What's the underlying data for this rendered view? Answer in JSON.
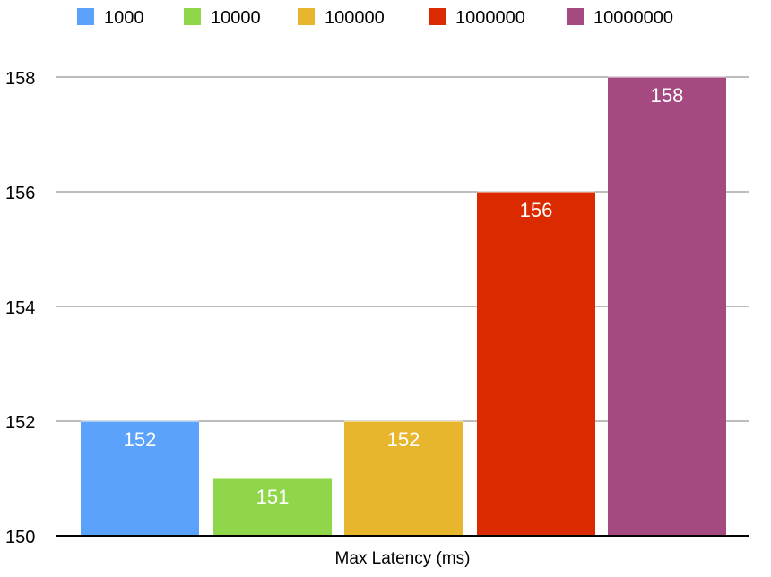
{
  "chart_data": {
    "type": "bar",
    "title": "",
    "xlabel": "Max Latency (ms)",
    "ylabel": "",
    "categories": [
      "Max Latency (ms)"
    ],
    "series": [
      {
        "name": "1000",
        "values": [
          152
        ],
        "color": "#5aa2fb"
      },
      {
        "name": "10000",
        "values": [
          151
        ],
        "color": "#8fd64b"
      },
      {
        "name": "100000",
        "values": [
          152
        ],
        "color": "#e8b62d"
      },
      {
        "name": "1000000",
        "values": [
          156
        ],
        "color": "#db2a00"
      },
      {
        "name": "10000000",
        "values": [
          158
        ],
        "color": "#a54a80"
      }
    ],
    "ylim": [
      150,
      158
    ],
    "yticks": [
      "150",
      "152",
      "154",
      "156",
      "158"
    ],
    "grid": true,
    "legend": "top",
    "data_labels": [
      "152",
      "151",
      "152",
      "156",
      "158"
    ]
  }
}
